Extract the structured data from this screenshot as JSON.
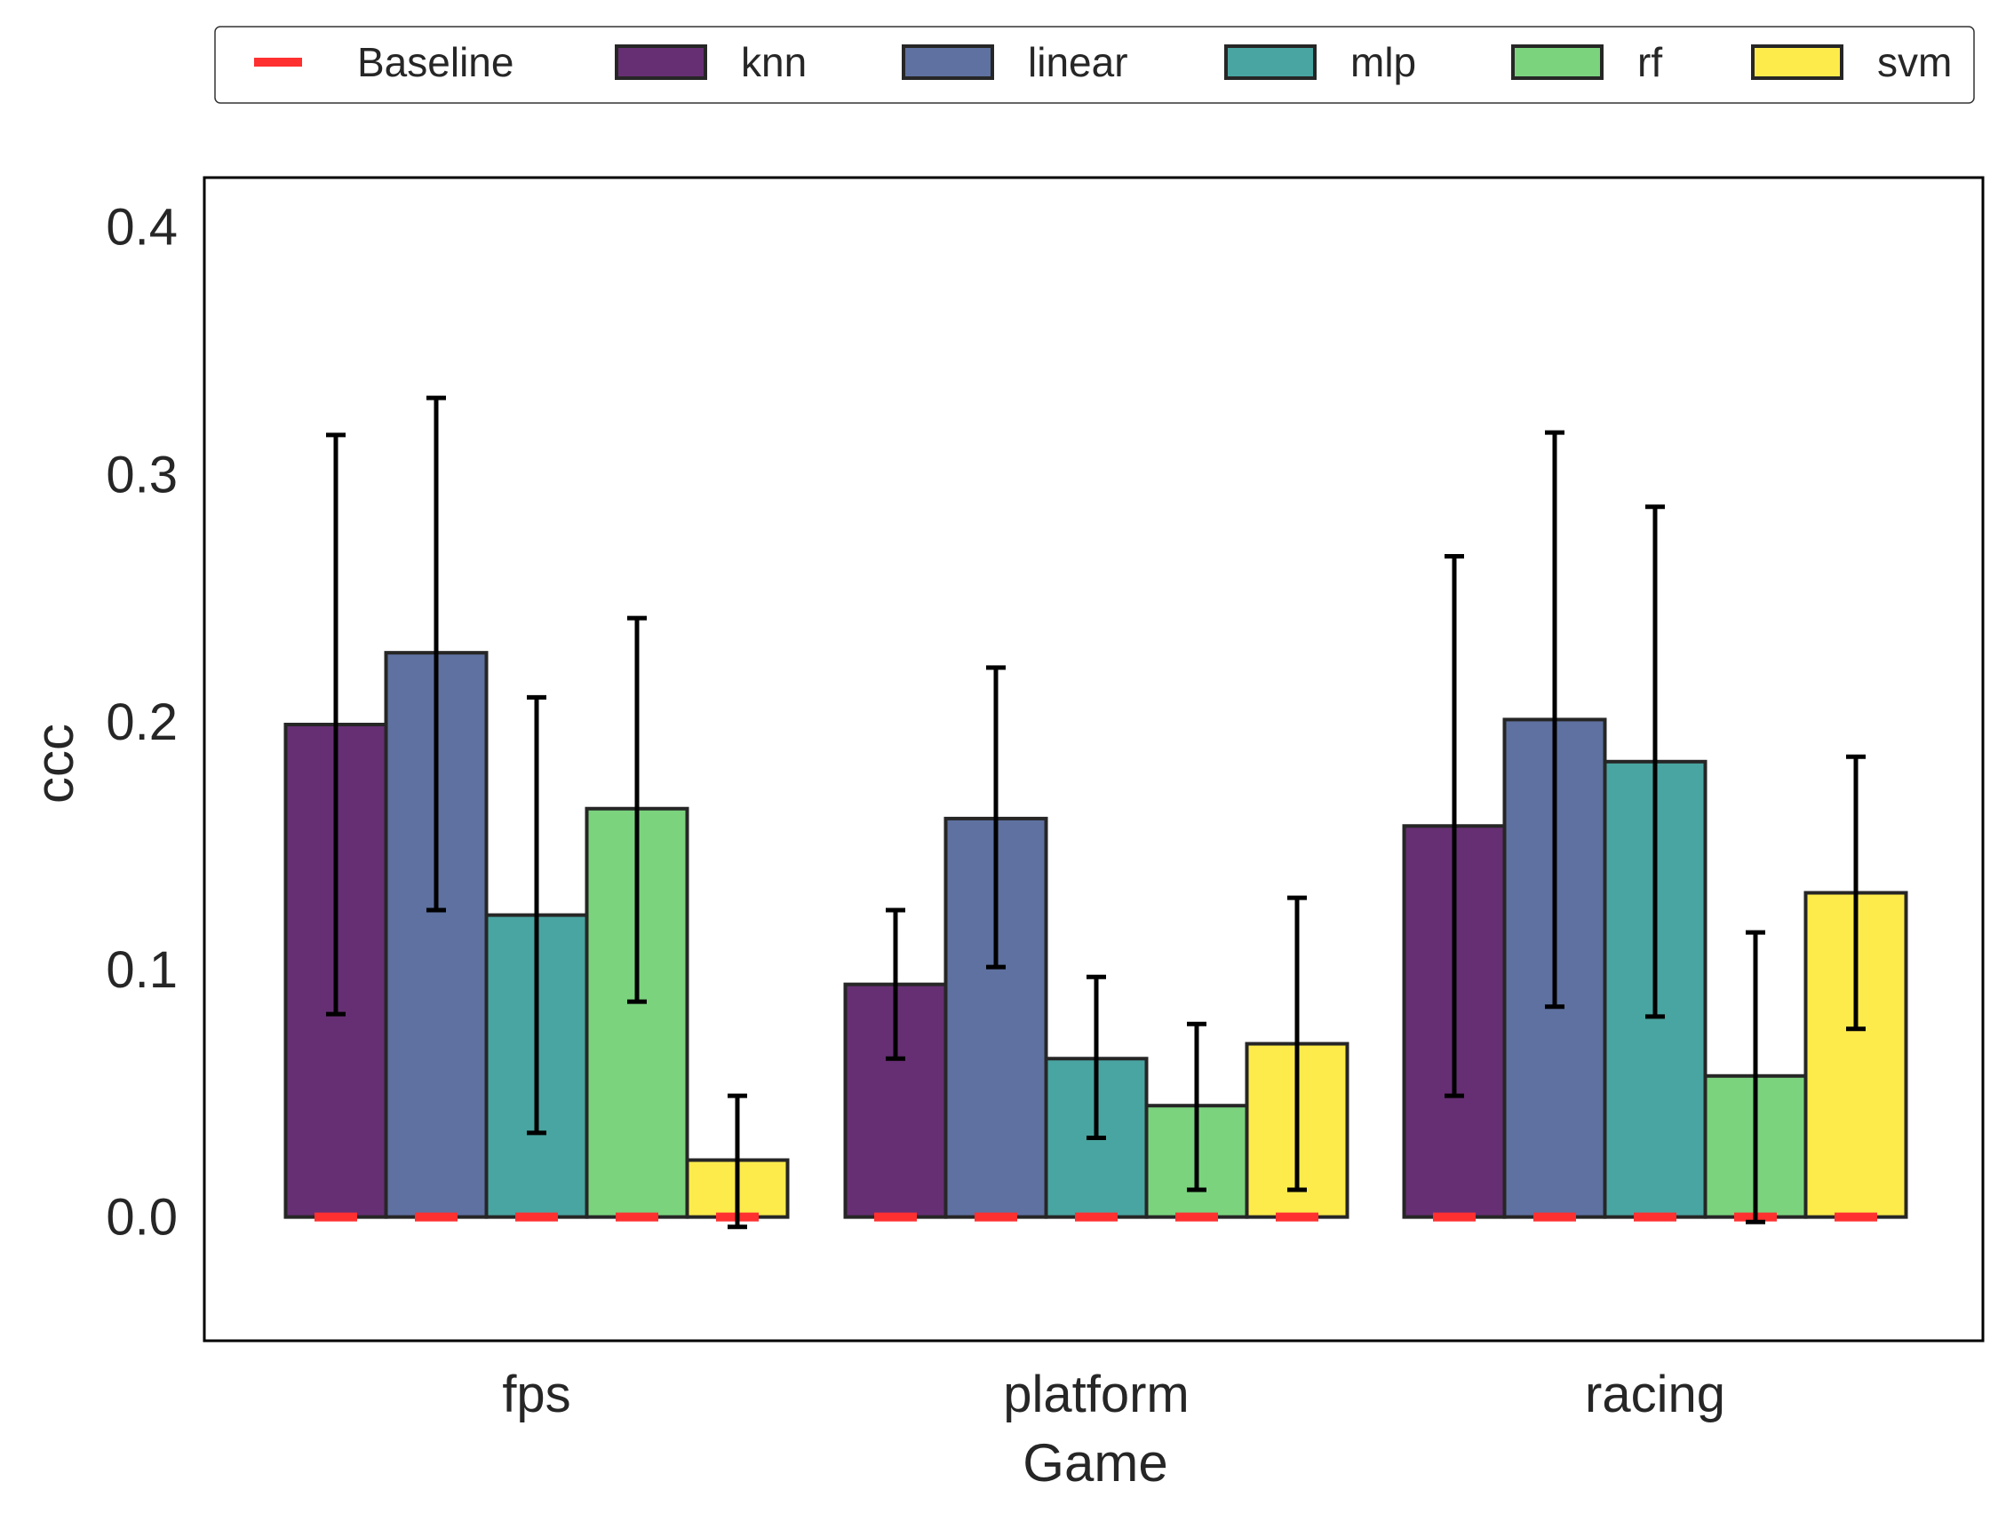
{
  "chart_data": {
    "type": "bar",
    "xlabel": "Game",
    "ylabel": "ccc",
    "ylim": [
      -0.05,
      0.42
    ],
    "yticks": [
      0.0,
      0.1,
      0.2,
      0.3,
      0.4
    ],
    "ytick_labels": [
      "0.0",
      "0.1",
      "0.2",
      "0.3",
      "0.4"
    ],
    "categories": [
      "fps",
      "platform",
      "racing"
    ],
    "grid": false,
    "legend": {
      "placement": "top",
      "entries": [
        "Baseline",
        "knn",
        "linear",
        "mlp",
        "rf",
        "svm"
      ]
    },
    "baseline": {
      "name": "Baseline",
      "color": "#ff3030",
      "values": [
        [
          0,
          0,
          0,
          0,
          0
        ],
        [
          0,
          0,
          0,
          0,
          0
        ],
        [
          0,
          0,
          0,
          0,
          0
        ]
      ]
    },
    "series": [
      {
        "name": "knn",
        "color": "#440154",
        "values": [
          0.199,
          0.094,
          0.158
        ],
        "err_low": [
          0.082,
          0.064,
          0.049
        ],
        "err_high": [
          0.316,
          0.124,
          0.267
        ]
      },
      {
        "name": "linear",
        "color": "#3b528b",
        "values": [
          0.228,
          0.161,
          0.201
        ],
        "err_low": [
          0.124,
          0.101,
          0.085
        ],
        "err_high": [
          0.331,
          0.222,
          0.317
        ]
      },
      {
        "name": "mlp",
        "color": "#21918c",
        "values": [
          0.122,
          0.064,
          0.184
        ],
        "err_low": [
          0.034,
          0.032,
          0.081
        ],
        "err_high": [
          0.21,
          0.097,
          0.287
        ]
      },
      {
        "name": "rf",
        "color": "#5ec962",
        "values": [
          0.165,
          0.045,
          0.057
        ],
        "err_low": [
          0.087,
          0.011,
          -0.002
        ],
        "err_high": [
          0.242,
          0.078,
          0.115
        ]
      },
      {
        "name": "svm",
        "color": "#fde725",
        "values": [
          0.023,
          0.07,
          0.131
        ],
        "err_low": [
          -0.004,
          0.011,
          0.076
        ],
        "err_high": [
          0.049,
          0.129,
          0.186
        ]
      }
    ]
  }
}
